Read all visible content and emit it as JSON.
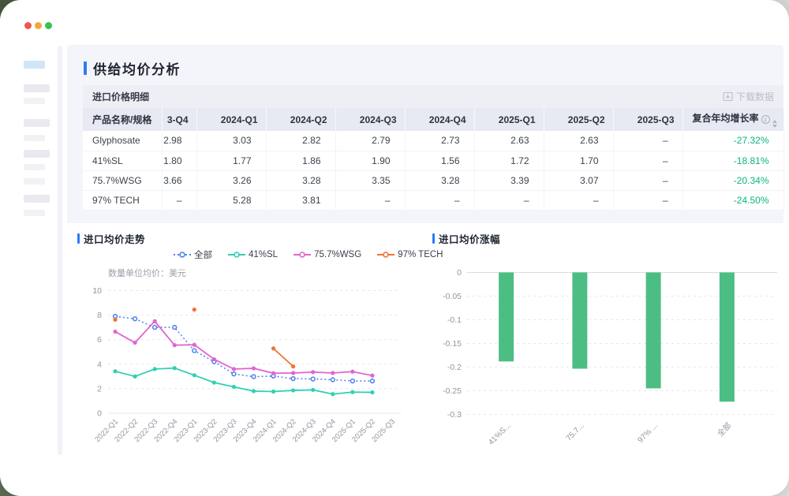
{
  "window": {
    "traffic_lights": [
      {
        "name": "close",
        "color": "#ee574d"
      },
      {
        "name": "minimize",
        "color": "#f5a73c"
      },
      {
        "name": "zoom",
        "color": "#36c352"
      }
    ]
  },
  "page": {
    "title": "供给均价分析"
  },
  "table_section": {
    "title": "进口价格明细",
    "download_label": "下载数据",
    "columns": [
      "产品名称/规格",
      "3-Q4",
      "2024-Q1",
      "2024-Q2",
      "2024-Q3",
      "2024-Q4",
      "2025-Q1",
      "2025-Q2",
      "2025-Q3"
    ],
    "cagr_header": "复合年均增长率",
    "rows": [
      {
        "name": "Glyphosate",
        "values": [
          "2.98",
          "3.03",
          "2.82",
          "2.79",
          "2.73",
          "2.63",
          "2.63",
          "–"
        ],
        "cagr": "-27.32%"
      },
      {
        "name": "41%SL",
        "values": [
          "1.80",
          "1.77",
          "1.86",
          "1.90",
          "1.56",
          "1.72",
          "1.70",
          "–"
        ],
        "cagr": "-18.81%"
      },
      {
        "name": "75.7%WSG",
        "values": [
          "3.66",
          "3.26",
          "3.28",
          "3.35",
          "3.28",
          "3.39",
          "3.07",
          "–"
        ],
        "cagr": "-20.34%"
      },
      {
        "name": "97% TECH",
        "values": [
          "–",
          "5.28",
          "3.81",
          "–",
          "–",
          "–",
          "–",
          "–"
        ],
        "cagr": "-24.50%"
      }
    ],
    "cagr_color": "#0bb57d"
  },
  "chart_data": [
    {
      "type": "line",
      "title": "进口均价走势",
      "note": "数量单位均价：美元",
      "legend_position": "top",
      "grid": true,
      "ylim": [
        0,
        10
      ],
      "yticks": [
        0,
        2,
        4,
        6,
        8,
        10
      ],
      "categories": [
        "2022-Q1",
        "2022-Q2",
        "2022-Q3",
        "2022-Q4",
        "2023-Q1",
        "2023-Q2",
        "2023-Q3",
        "2023-Q4",
        "2024-Q1",
        "2024-Q2",
        "2024-Q3",
        "2024-Q4",
        "2025-Q1",
        "2025-Q2",
        "2025-Q3"
      ],
      "series": [
        {
          "name": "全部",
          "color": "#4e7ef0",
          "dashed": true,
          "marker": "hollow",
          "values": [
            7.9,
            7.7,
            7.0,
            7.0,
            5.1,
            4.2,
            3.2,
            2.98,
            3.03,
            2.82,
            2.79,
            2.73,
            2.63,
            2.63,
            null
          ]
        },
        {
          "name": "41%SL",
          "color": "#2fd0b5",
          "dashed": false,
          "marker": "solid",
          "values": [
            3.42,
            3.0,
            3.6,
            3.68,
            3.1,
            2.5,
            2.15,
            1.8,
            1.77,
            1.86,
            1.9,
            1.56,
            1.72,
            1.7,
            null
          ]
        },
        {
          "name": "75.7%WSG",
          "color": "#e065cf",
          "dashed": false,
          "marker": "solid",
          "values": [
            6.65,
            5.75,
            7.5,
            5.55,
            5.58,
            4.4,
            3.6,
            3.66,
            3.26,
            3.28,
            3.35,
            3.28,
            3.39,
            3.07,
            null
          ]
        },
        {
          "name": "97% TECH",
          "color": "#ef7334",
          "dashed": false,
          "marker": "solid",
          "values": [
            7.63,
            null,
            null,
            null,
            8.45,
            null,
            null,
            null,
            5.28,
            3.81,
            null,
            null,
            null,
            null,
            null
          ]
        }
      ]
    },
    {
      "type": "bar",
      "title": "进口均价涨幅",
      "color": "#4dbe83",
      "grid": true,
      "ylim": [
        -0.3,
        0
      ],
      "yticks": [
        0,
        -0.05,
        -0.1,
        -0.15,
        -0.2,
        -0.25,
        -0.3
      ],
      "ytick_labels": [
        "0",
        "-0.05",
        "-0.1",
        "-0.15",
        "-0.2",
        "-0.25",
        "-0.3"
      ],
      "categories": [
        "41%S...",
        "75.7...",
        "97% ...",
        "全部"
      ],
      "values": [
        -0.1881,
        -0.2034,
        -0.245,
        -0.2732
      ]
    }
  ]
}
